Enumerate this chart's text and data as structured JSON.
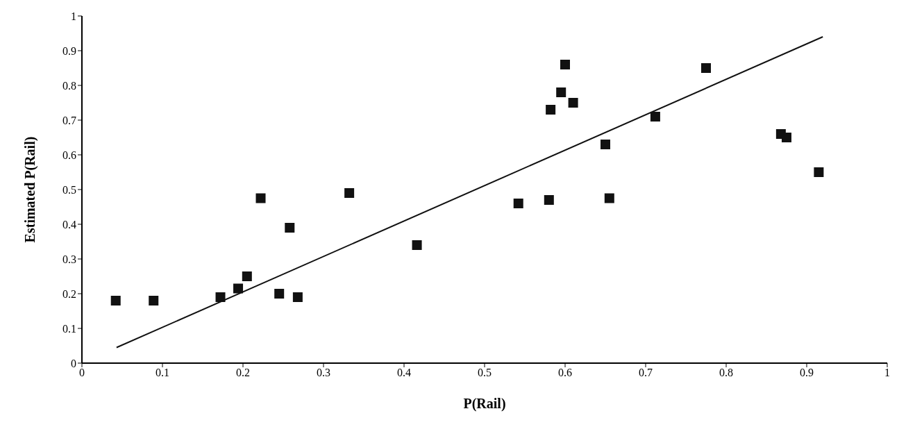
{
  "chart_data": {
    "type": "scatter",
    "xlabel": "P(Rail)",
    "ylabel": "Estimated P(Rail)",
    "xlim": [
      0,
      1
    ],
    "ylim": [
      0,
      1
    ],
    "xticks": [
      0,
      0.1,
      0.2,
      0.3,
      0.4,
      0.5,
      0.6,
      0.7,
      0.8,
      0.9,
      1
    ],
    "yticks": [
      0,
      0.1,
      0.2,
      0.3,
      0.4,
      0.5,
      0.6,
      0.7,
      0.8,
      0.9,
      1
    ],
    "grid": false,
    "legend": false,
    "series": [
      {
        "marker": "square",
        "color": "#111111",
        "x": [
          0.042,
          0.089,
          0.172,
          0.194,
          0.205,
          0.222,
          0.245,
          0.258,
          0.268,
          0.332,
          0.416,
          0.542,
          0.58,
          0.582,
          0.595,
          0.6,
          0.61,
          0.65,
          0.655,
          0.712,
          0.775,
          0.868,
          0.875,
          0.915
        ],
        "values": [
          0.18,
          0.18,
          0.19,
          0.215,
          0.25,
          0.475,
          0.2,
          0.39,
          0.19,
          0.49,
          0.34,
          0.46,
          0.47,
          0.73,
          0.78,
          0.86,
          0.75,
          0.63,
          0.475,
          0.71,
          0.85,
          0.66,
          0.65,
          0.55
        ]
      },
      {
        "type": "line",
        "marker": "none",
        "color": "#111111",
        "x": [
          0.043,
          0.92
        ],
        "values": [
          0.045,
          0.94
        ]
      }
    ]
  }
}
